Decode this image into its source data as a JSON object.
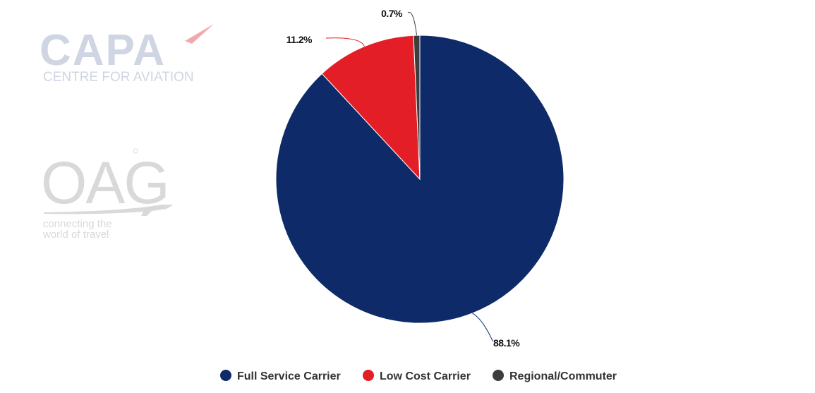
{
  "logos": {
    "capa": {
      "name": "CAPA",
      "tagline": "CENTRE FOR AVIATION"
    },
    "oag": {
      "name": "OAG",
      "tagline_line1": "connecting the",
      "tagline_line2": "world of travel"
    }
  },
  "chart_data": {
    "type": "pie",
    "title": "",
    "start_angle_deg": 0,
    "direction": "clockwise",
    "legend_position": "bottom",
    "slices": [
      {
        "name": "Full Service Carrier",
        "value": 88.1,
        "label": "88.1%",
        "color": "#0e2a68"
      },
      {
        "name": "Low Cost Carrier",
        "value": 11.2,
        "label": "11.2%",
        "color": "#e31e26"
      },
      {
        "name": "Regional/Commuter",
        "value": 0.7,
        "label": "0.7%",
        "color": "#3d3d3d"
      }
    ]
  }
}
